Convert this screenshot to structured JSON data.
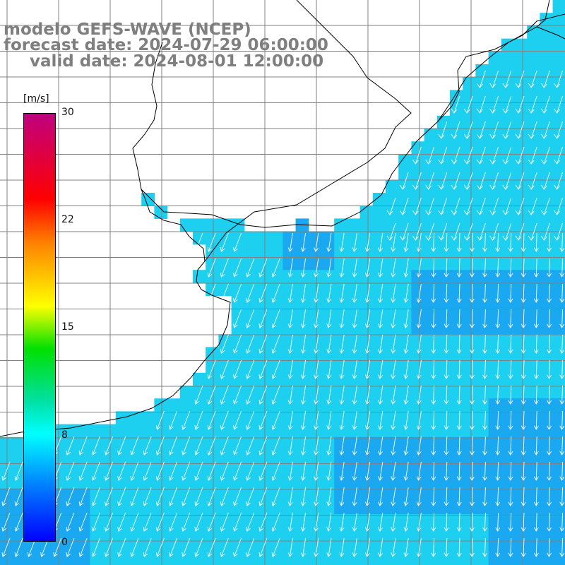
{
  "header": {
    "title": "modelo GEFS-WAVE (NCEP)",
    "forecast": "forecast date: 2024-07-29 06:00:00",
    "valid": "valid date: 2024-08-01 12:00:00"
  },
  "colorbar": {
    "unit": "[m/s]",
    "ticks": [
      {
        "value": 30,
        "label": "30"
      },
      {
        "value": 22,
        "label": "22"
      },
      {
        "value": 15,
        "label": "15"
      },
      {
        "value": 8,
        "label": "8"
      },
      {
        "value": 0,
        "label": "0"
      }
    ],
    "min": 0,
    "max": 30
  },
  "map": {
    "variable": "wind speed and direction",
    "typical_speed_ms": 9,
    "wind_direction": "from north-east toward south-west",
    "colors": {
      "land": "#ffffff",
      "sea_main": "#1ed0f0",
      "sea_dark": "#1aa8f0",
      "grid": "#808080",
      "coast": "#000000",
      "arrow": "#ffffff"
    }
  }
}
